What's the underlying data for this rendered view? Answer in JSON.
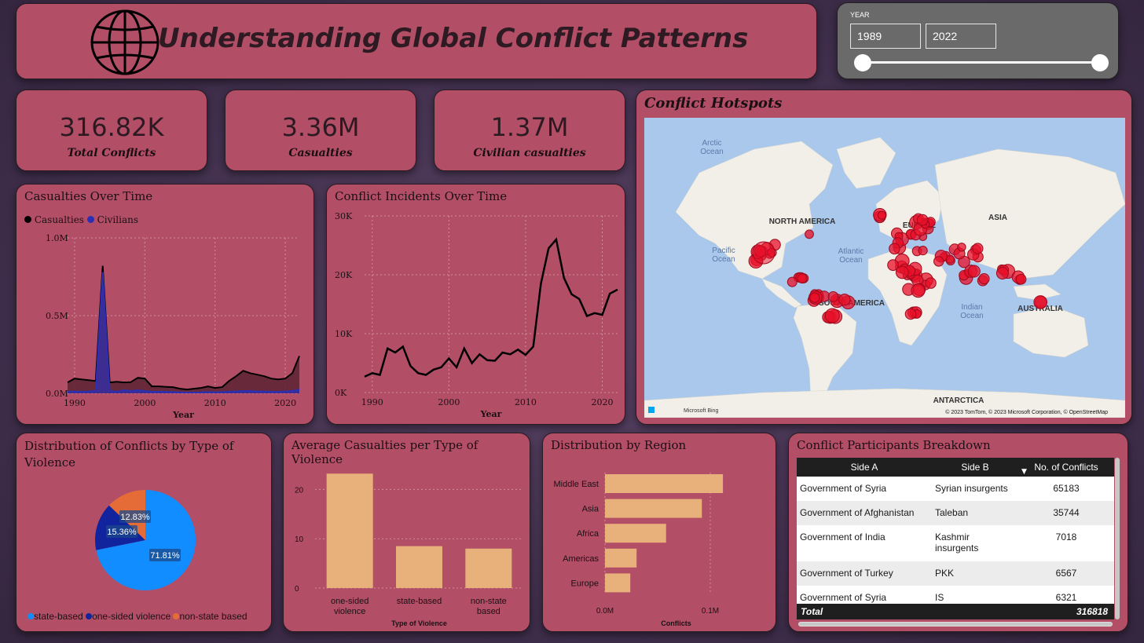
{
  "header": {
    "title": "Understanding Global Conflict Patterns",
    "icon": "globe-icon"
  },
  "year_filter": {
    "label": "YEAR",
    "start": "1989",
    "end": "2022"
  },
  "kpis": [
    {
      "value": "316.82K",
      "label": "Total Conflicts"
    },
    {
      "value": "3.36M",
      "label": "Casualties"
    },
    {
      "value": "1.37M",
      "label": "Civilian casualties"
    }
  ],
  "map": {
    "title": "Conflict Hotspots",
    "labels": {
      "arctic": "Arctic\nOcean",
      "north_america": "NORTH AMERICA",
      "pacific": "Pacific\nOcean",
      "atlantic": "Atlantic\nOcean",
      "europe": "EUROPE",
      "asia": "ASIA",
      "south_america": "SOUTH AMERICA",
      "indian": "Indian\nOcean",
      "australia": "AUSTRALIA",
      "antarctica": "ANTARCTICA"
    },
    "attribution": "© 2023 TomTom, © 2023 Microsoft Corporation, © OpenStreetMap",
    "brand": "Microsoft Bing"
  },
  "casualties_chart": {
    "title": "Casualties Over Time",
    "legend": [
      "Casualties",
      "Civilians"
    ],
    "colors": {
      "casualties": "#000000",
      "civilians": "#2b2fb5"
    },
    "xlabel": "Year"
  },
  "incidents_chart": {
    "title": "Conflict Incidents Over Time",
    "xlabel": "Year"
  },
  "violence_pie": {
    "title": "Distribution of Conflicts by Type of Violence",
    "legend": [
      "state-based",
      "one-sided violence",
      "non-state based"
    ],
    "colors": [
      "#118dff",
      "#12239e",
      "#e66c37"
    ]
  },
  "avg_casualties_chart": {
    "title": "Average Casualties per Type of Violence",
    "xlabel": "Type of Violence"
  },
  "region_chart": {
    "title": "Distribution by Region",
    "xlabel": "Conflicts"
  },
  "participants": {
    "title": "Conflict Participants Breakdown",
    "columns": [
      "Side A",
      "Side B",
      "No. of Conflicts"
    ],
    "rows": [
      [
        "Government of Syria",
        "Syrian insurgents",
        "65183"
      ],
      [
        "Government of Afghanistan",
        "Taleban",
        "35744"
      ],
      [
        "Government of India",
        "Kashmir insurgents",
        "7018"
      ],
      [
        "Government of Turkey",
        "PKK",
        "6567"
      ],
      [
        "Government of Syria",
        "IS",
        "6321"
      ]
    ],
    "total_label": "Total",
    "total_value": "316818"
  },
  "chart_data": [
    {
      "type": "area",
      "title": "Casualties Over Time",
      "xlabel": "Year",
      "ylim": [
        0,
        1000000
      ],
      "x": [
        1989,
        1990,
        1991,
        1992,
        1993,
        1994,
        1995,
        1996,
        1997,
        1998,
        1999,
        2000,
        2001,
        2002,
        2003,
        2004,
        2005,
        2006,
        2007,
        2008,
        2009,
        2010,
        2011,
        2012,
        2013,
        2014,
        2015,
        2016,
        2017,
        2018,
        2019,
        2020,
        2021,
        2022
      ],
      "series": [
        {
          "name": "Casualties",
          "values": [
            70000,
            95000,
            90000,
            85000,
            80000,
            820000,
            70000,
            75000,
            70000,
            72000,
            100000,
            95000,
            45000,
            45000,
            42000,
            40000,
            30000,
            25000,
            30000,
            35000,
            45000,
            35000,
            40000,
            80000,
            110000,
            145000,
            130000,
            120000,
            110000,
            95000,
            90000,
            95000,
            130000,
            240000
          ]
        },
        {
          "name": "Civilians",
          "values": [
            10000,
            12000,
            10000,
            12000,
            15000,
            780000,
            15000,
            10000,
            20000,
            15000,
            20000,
            15000,
            10000,
            10000,
            10000,
            8000,
            6000,
            5000,
            5000,
            6000,
            8000,
            6000,
            8000,
            10000,
            12000,
            15000,
            15000,
            12000,
            12000,
            10000,
            10000,
            12000,
            15000,
            25000
          ]
        }
      ]
    },
    {
      "type": "line",
      "title": "Conflict Incidents Over Time",
      "xlabel": "Year",
      "ylim": [
        0,
        30000
      ],
      "x": [
        1989,
        1990,
        1991,
        1992,
        1993,
        1994,
        1995,
        1996,
        1997,
        1998,
        1999,
        2000,
        2001,
        2002,
        2003,
        2004,
        2005,
        2006,
        2007,
        2008,
        2009,
        2010,
        2011,
        2012,
        2013,
        2014,
        2015,
        2016,
        2017,
        2018,
        2019,
        2020,
        2021,
        2022
      ],
      "values": [
        2700,
        3300,
        3000,
        7500,
        6800,
        7800,
        4500,
        3300,
        3000,
        3900,
        4300,
        5800,
        4300,
        7500,
        5000,
        6500,
        5500,
        5400,
        6800,
        6500,
        7300,
        6400,
        7800,
        18500,
        24500,
        26000,
        19500,
        16700,
        15900,
        13000,
        13500,
        13200,
        16800,
        17500
      ]
    },
    {
      "type": "pie",
      "title": "Distribution of Conflicts by Type of Violence",
      "categories": [
        "state-based",
        "one-sided violence",
        "non-state based"
      ],
      "values": [
        71.81,
        15.36,
        12.83
      ],
      "labels": [
        "71.81%",
        "15.36%",
        "12.83%"
      ]
    },
    {
      "type": "bar",
      "title": "Average Casualties per Type of Violence",
      "categories": [
        "one-sided violence",
        "state-based",
        "non-state based"
      ],
      "values": [
        23.2,
        8.5,
        8.0
      ],
      "xlabel": "Type of Violence",
      "ylim": [
        0,
        25
      ],
      "yticks": [
        "0",
        "10",
        "20"
      ]
    },
    {
      "type": "bar",
      "orientation": "horizontal",
      "title": "Distribution by Region",
      "categories": [
        "Middle East",
        "Asia",
        "Africa",
        "Americas",
        "Europe"
      ],
      "values": [
        112000,
        92000,
        58000,
        30000,
        24000
      ],
      "xlabel": "Conflicts",
      "xticks": [
        "0.0M",
        "0.1M"
      ]
    }
  ]
}
